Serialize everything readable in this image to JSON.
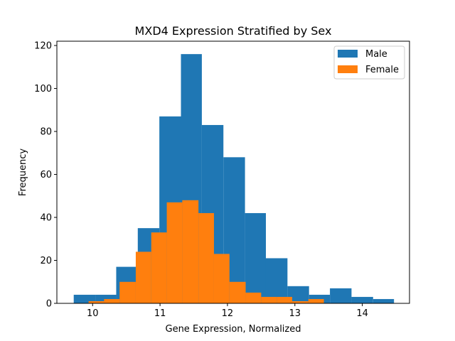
{
  "chart_data": {
    "type": "bar",
    "title": "MXD4 Expression Stratified by Sex",
    "xlabel": "Gene Expression, Normalized",
    "ylabel": "Frequency",
    "xlim": [
      9.47,
      14.7
    ],
    "ylim": [
      0,
      122
    ],
    "xticks": [
      10,
      11,
      12,
      13,
      14
    ],
    "yticks": [
      0,
      20,
      40,
      60,
      80,
      100,
      120
    ],
    "legend_position": "top-right",
    "series": [
      {
        "name": "Male",
        "color": "#1f77b4",
        "bins": [
          {
            "x0": 9.72,
            "x1": 10.04,
            "value": 4
          },
          {
            "x0": 10.04,
            "x1": 10.35,
            "value": 4
          },
          {
            "x0": 10.35,
            "x1": 10.67,
            "value": 17
          },
          {
            "x0": 10.67,
            "x1": 10.99,
            "value": 35
          },
          {
            "x0": 10.99,
            "x1": 11.31,
            "value": 87
          },
          {
            "x0": 11.31,
            "x1": 11.62,
            "value": 116
          },
          {
            "x0": 11.62,
            "x1": 11.94,
            "value": 83
          },
          {
            "x0": 11.94,
            "x1": 12.26,
            "value": 68
          },
          {
            "x0": 12.26,
            "x1": 12.57,
            "value": 42
          },
          {
            "x0": 12.57,
            "x1": 12.89,
            "value": 21
          },
          {
            "x0": 12.89,
            "x1": 13.21,
            "value": 8
          },
          {
            "x0": 13.21,
            "x1": 13.52,
            "value": 4
          },
          {
            "x0": 13.52,
            "x1": 13.84,
            "value": 7
          },
          {
            "x0": 13.84,
            "x1": 14.16,
            "value": 3
          },
          {
            "x0": 14.16,
            "x1": 14.47,
            "value": 2
          }
        ]
      },
      {
        "name": "Female",
        "color": "#ff7f0e",
        "bins": [
          {
            "x0": 9.94,
            "x1": 10.17,
            "value": 1
          },
          {
            "x0": 10.17,
            "x1": 10.4,
            "value": 2
          },
          {
            "x0": 10.4,
            "x1": 10.64,
            "value": 10
          },
          {
            "x0": 10.64,
            "x1": 10.87,
            "value": 24
          },
          {
            "x0": 10.87,
            "x1": 11.1,
            "value": 33
          },
          {
            "x0": 11.1,
            "x1": 11.33,
            "value": 47
          },
          {
            "x0": 11.33,
            "x1": 11.57,
            "value": 48
          },
          {
            "x0": 11.57,
            "x1": 11.8,
            "value": 42
          },
          {
            "x0": 11.8,
            "x1": 12.03,
            "value": 23
          },
          {
            "x0": 12.03,
            "x1": 12.27,
            "value": 10
          },
          {
            "x0": 12.27,
            "x1": 12.5,
            "value": 5
          },
          {
            "x0": 12.5,
            "x1": 12.73,
            "value": 3
          },
          {
            "x0": 12.73,
            "x1": 12.96,
            "value": 3
          },
          {
            "x0": 12.96,
            "x1": 13.2,
            "value": 1
          },
          {
            "x0": 13.2,
            "x1": 13.43,
            "value": 2
          }
        ]
      }
    ]
  }
}
